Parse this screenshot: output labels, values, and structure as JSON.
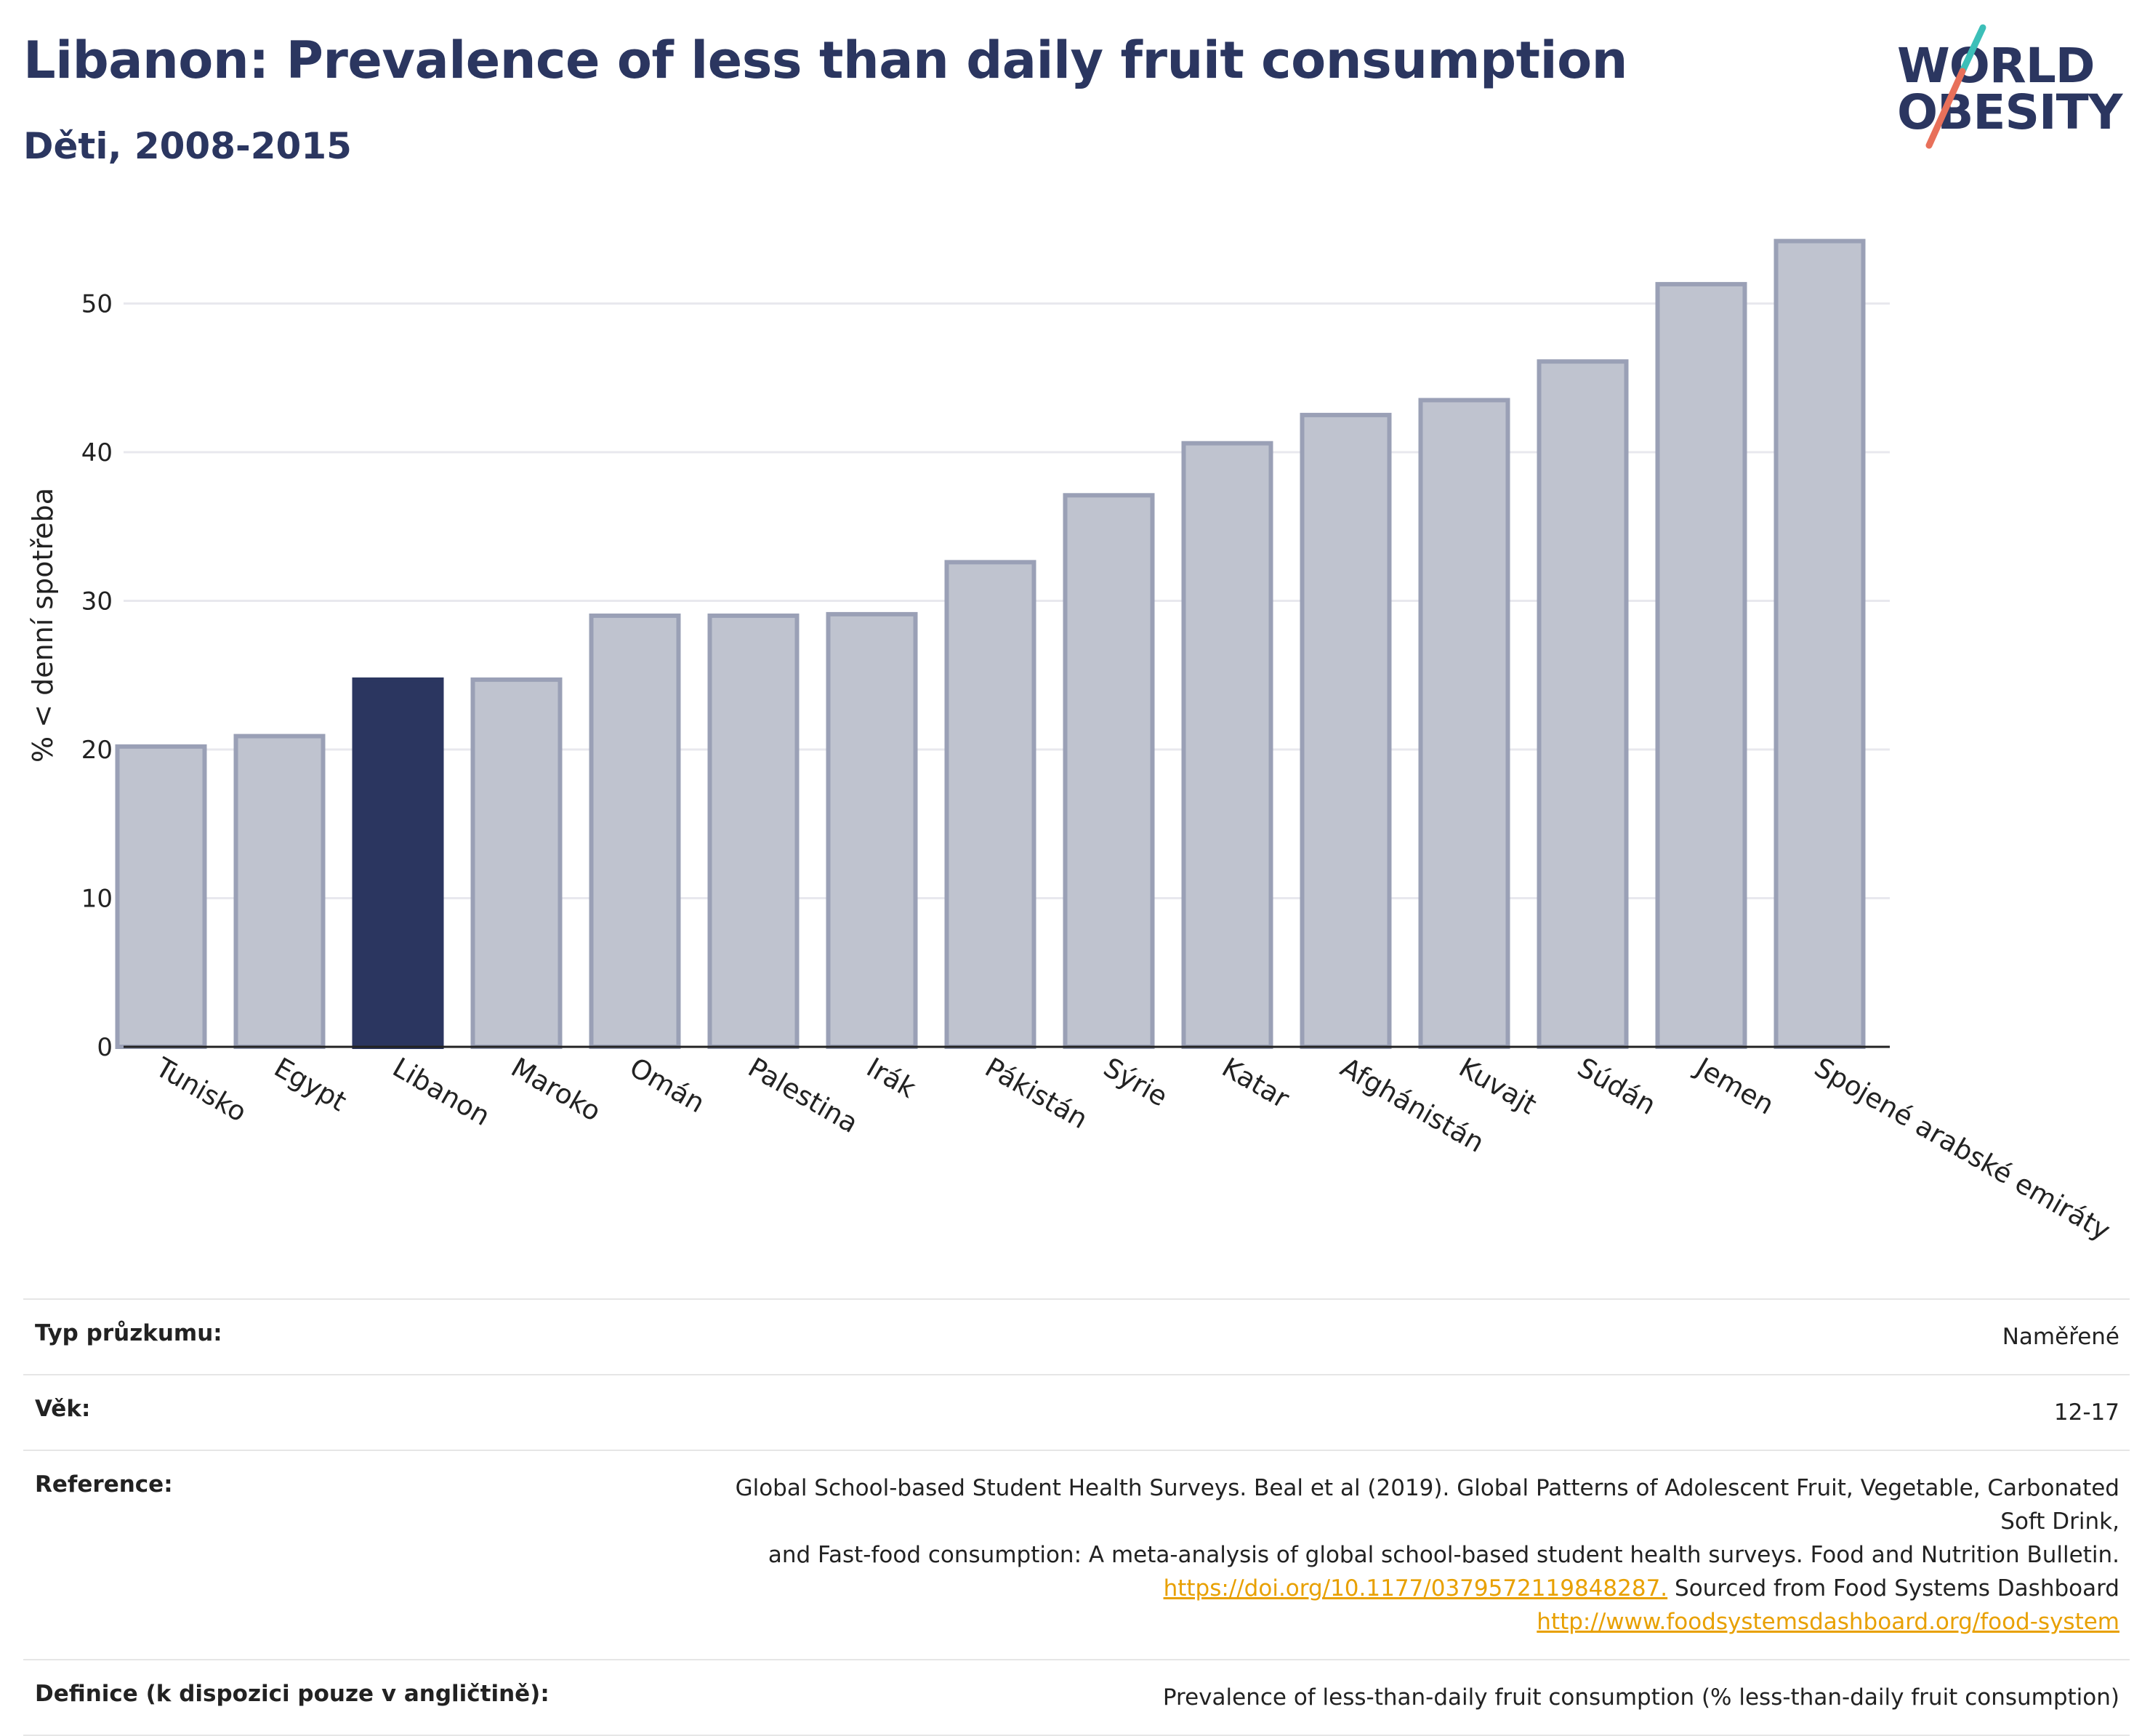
{
  "header": {
    "title": "Libanon: Prevalence of less than daily fruit consumption",
    "subtitle": "Děti, 2008-2015"
  },
  "logo": {
    "line1": "WORLD",
    "line2": "OBESITY",
    "colors": {
      "text": "#2b3660",
      "slash_top": "#3cbfb8",
      "slash_bottom": "#e8705a"
    }
  },
  "chart_data": {
    "type": "bar",
    "title": "Libanon: Prevalence of less than daily fruit consumption",
    "subtitle": "Děti, 2008-2015",
    "ylabel": "% < denní spotřeba",
    "xlabel": "",
    "ylim": [
      0,
      55
    ],
    "yticks": [
      0,
      10,
      20,
      30,
      40,
      50
    ],
    "grid": true,
    "highlight": "Libanon",
    "colors": {
      "bar": "#bfc3cf",
      "bar_edge": "#9aa0b6",
      "highlight": "#2b3660"
    },
    "categories": [
      "Tunisko",
      "Egypt",
      "Libanon",
      "Maroko",
      "Omán",
      "Palestina",
      "Irák",
      "Pákistán",
      "Sýrie",
      "Katar",
      "Afghánistán",
      "Kuvajt",
      "Súdán",
      "Jemen",
      "Spojené arabské emiráty"
    ],
    "values": [
      20.2,
      20.9,
      24.7,
      24.7,
      29.0,
      29.0,
      29.1,
      32.6,
      37.1,
      40.6,
      42.5,
      43.5,
      46.1,
      51.3,
      54.2
    ]
  },
  "meta": {
    "rows": [
      {
        "label": "Typ průzkumu:",
        "value": "Naměřené"
      },
      {
        "label": "Věk:",
        "value": "12-17"
      },
      {
        "label": "Reference:",
        "value_line1": "Global School-based Student Health Surveys. Beal et al (2019). Global Patterns of Adolescent Fruit, Vegetable, Carbonated Soft Drink,",
        "value_line2": "and Fast-food consumption: A meta-analysis of global school-based student health surveys. Food and Nutrition Bulletin.",
        "link1": "https://doi.org/10.1177/0379572119848287.",
        "mid_text": " Sourced from Food Systems Dashboard ",
        "link2": "http://www.foodsystemsdashboard.org/food-system"
      },
      {
        "label": "Definice (k dispozici pouze v angličtině):",
        "value": "Prevalence of less-than-daily fruit consumption (% less-than-daily fruit consumption)"
      }
    ]
  }
}
